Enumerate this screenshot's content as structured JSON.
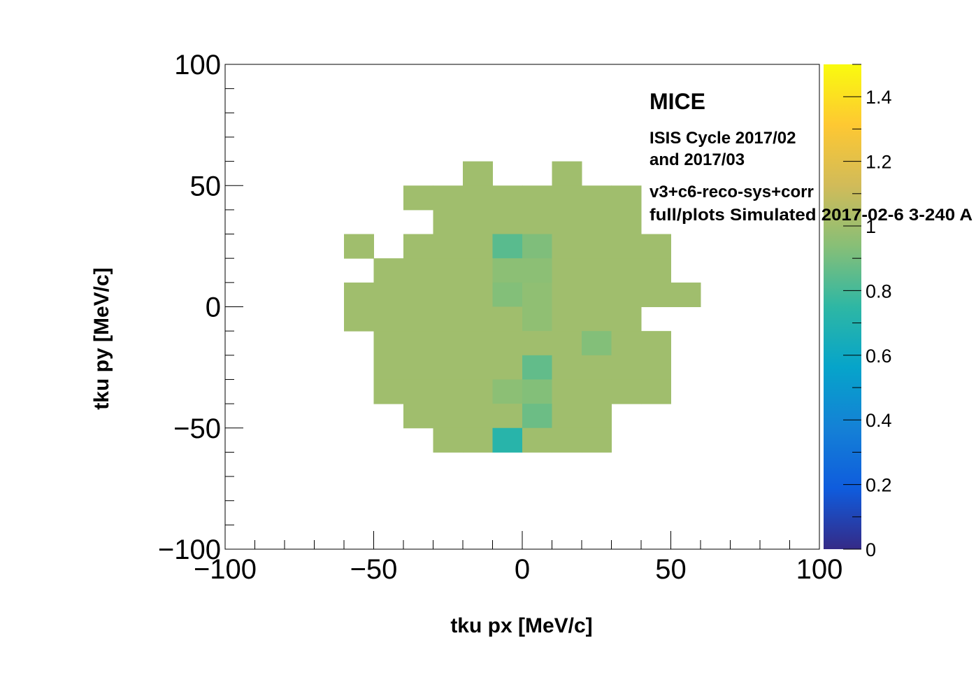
{
  "chart_data": {
    "type": "heatmap",
    "xlabel": "tku px [MeV/c]",
    "ylabel": "tku py [MeV/c]",
    "xlim": [
      -100,
      100
    ],
    "ylim": [
      -100,
      100
    ],
    "x_ticks": [
      "−100",
      "−50",
      "0",
      "50",
      "100"
    ],
    "y_ticks": [
      "−100",
      "−50",
      "0",
      "50",
      "100"
    ],
    "colorbar": {
      "range": [
        0,
        1.5
      ],
      "ticks": [
        "0",
        "0.2",
        "0.4",
        "0.6",
        "0.8",
        "1",
        "1.2",
        "1.4"
      ],
      "tick_values": [
        0,
        0.2,
        0.4,
        0.6,
        0.8,
        1.0,
        1.2,
        1.4
      ],
      "palette": [
        "#352a87",
        "#0f5cdd",
        "#1481d6",
        "#06a4ca",
        "#2eb7a4",
        "#87bf77",
        "#d1bb59",
        "#fec832",
        "#f9fb0e"
      ]
    },
    "bin_width": 10,
    "annotations": {
      "experiment": "MICE",
      "cycle_line1": "ISIS Cycle 2017/02",
      "cycle_line2": "and 2017/03",
      "version": "v3+c6-reco-sys+corr",
      "sample": "full/plots Simulated 2017-02-6 3-240 A"
    },
    "cells": [
      {
        "x": -20,
        "y": 50,
        "v": 1.0
      },
      {
        "x": 10,
        "y": 50,
        "v": 1.0
      },
      {
        "x": -40,
        "y": 40,
        "v": 1.0
      },
      {
        "x": -30,
        "y": 40,
        "v": 1.0
      },
      {
        "x": -20,
        "y": 40,
        "v": 1.0
      },
      {
        "x": -10,
        "y": 40,
        "v": 1.0
      },
      {
        "x": 0,
        "y": 40,
        "v": 1.0
      },
      {
        "x": 10,
        "y": 40,
        "v": 1.0
      },
      {
        "x": 20,
        "y": 40,
        "v": 1.0
      },
      {
        "x": 30,
        "y": 40,
        "v": 1.0
      },
      {
        "x": -30,
        "y": 30,
        "v": 1.0
      },
      {
        "x": -20,
        "y": 30,
        "v": 1.0
      },
      {
        "x": -10,
        "y": 30,
        "v": 1.0
      },
      {
        "x": 0,
        "y": 30,
        "v": 1.0
      },
      {
        "x": 10,
        "y": 30,
        "v": 1.0
      },
      {
        "x": 20,
        "y": 30,
        "v": 1.0
      },
      {
        "x": 30,
        "y": 30,
        "v": 1.0
      },
      {
        "x": -60,
        "y": 20,
        "v": 1.0
      },
      {
        "x": -40,
        "y": 20,
        "v": 1.0
      },
      {
        "x": -30,
        "y": 20,
        "v": 1.0
      },
      {
        "x": -20,
        "y": 20,
        "v": 1.0
      },
      {
        "x": -10,
        "y": 20,
        "v": 0.84
      },
      {
        "x": 0,
        "y": 20,
        "v": 0.92
      },
      {
        "x": 10,
        "y": 20,
        "v": 1.0
      },
      {
        "x": 20,
        "y": 20,
        "v": 1.0
      },
      {
        "x": 30,
        "y": 20,
        "v": 1.0
      },
      {
        "x": 40,
        "y": 20,
        "v": 1.0
      },
      {
        "x": -50,
        "y": 10,
        "v": 1.0
      },
      {
        "x": -40,
        "y": 10,
        "v": 1.0
      },
      {
        "x": -30,
        "y": 10,
        "v": 1.0
      },
      {
        "x": -20,
        "y": 10,
        "v": 1.0
      },
      {
        "x": -10,
        "y": 10,
        "v": 0.95
      },
      {
        "x": 0,
        "y": 10,
        "v": 0.95
      },
      {
        "x": 10,
        "y": 10,
        "v": 1.0
      },
      {
        "x": 20,
        "y": 10,
        "v": 1.0
      },
      {
        "x": 30,
        "y": 10,
        "v": 1.0
      },
      {
        "x": 40,
        "y": 10,
        "v": 1.0
      },
      {
        "x": -60,
        "y": 0,
        "v": 1.0
      },
      {
        "x": -50,
        "y": 0,
        "v": 1.0
      },
      {
        "x": -40,
        "y": 0,
        "v": 1.0
      },
      {
        "x": -30,
        "y": 0,
        "v": 1.0
      },
      {
        "x": -20,
        "y": 0,
        "v": 1.0
      },
      {
        "x": -10,
        "y": 0,
        "v": 0.93
      },
      {
        "x": 0,
        "y": 0,
        "v": 0.96
      },
      {
        "x": 10,
        "y": 0,
        "v": 1.0
      },
      {
        "x": 20,
        "y": 0,
        "v": 1.0
      },
      {
        "x": 30,
        "y": 0,
        "v": 1.0
      },
      {
        "x": 40,
        "y": 0,
        "v": 1.0
      },
      {
        "x": 50,
        "y": 0,
        "v": 1.0
      },
      {
        "x": -60,
        "y": -10,
        "v": 1.0
      },
      {
        "x": -50,
        "y": -10,
        "v": 1.0
      },
      {
        "x": -40,
        "y": -10,
        "v": 1.0
      },
      {
        "x": -30,
        "y": -10,
        "v": 1.0
      },
      {
        "x": -20,
        "y": -10,
        "v": 1.0
      },
      {
        "x": -10,
        "y": -10,
        "v": 1.0
      },
      {
        "x": 0,
        "y": -10,
        "v": 0.96
      },
      {
        "x": 10,
        "y": -10,
        "v": 1.0
      },
      {
        "x": 20,
        "y": -10,
        "v": 1.0
      },
      {
        "x": 30,
        "y": -10,
        "v": 1.0
      },
      {
        "x": -50,
        "y": -20,
        "v": 1.0
      },
      {
        "x": -40,
        "y": -20,
        "v": 1.0
      },
      {
        "x": -30,
        "y": -20,
        "v": 1.0
      },
      {
        "x": -20,
        "y": -20,
        "v": 1.0
      },
      {
        "x": -10,
        "y": -20,
        "v": 1.0
      },
      {
        "x": 0,
        "y": -20,
        "v": 1.0
      },
      {
        "x": 10,
        "y": -20,
        "v": 1.0
      },
      {
        "x": 20,
        "y": -20,
        "v": 0.93
      },
      {
        "x": 30,
        "y": -20,
        "v": 1.0
      },
      {
        "x": 40,
        "y": -20,
        "v": 1.0
      },
      {
        "x": -50,
        "y": -30,
        "v": 1.0
      },
      {
        "x": -40,
        "y": -30,
        "v": 1.0
      },
      {
        "x": -30,
        "y": -30,
        "v": 1.0
      },
      {
        "x": -20,
        "y": -30,
        "v": 1.0
      },
      {
        "x": -10,
        "y": -30,
        "v": 1.0
      },
      {
        "x": 0,
        "y": -30,
        "v": 0.86
      },
      {
        "x": 10,
        "y": -30,
        "v": 1.0
      },
      {
        "x": 20,
        "y": -30,
        "v": 1.0
      },
      {
        "x": 30,
        "y": -30,
        "v": 1.0
      },
      {
        "x": 40,
        "y": -30,
        "v": 1.0
      },
      {
        "x": -50,
        "y": -40,
        "v": 1.0
      },
      {
        "x": -40,
        "y": -40,
        "v": 1.0
      },
      {
        "x": -30,
        "y": -40,
        "v": 1.0
      },
      {
        "x": -20,
        "y": -40,
        "v": 1.0
      },
      {
        "x": -10,
        "y": -40,
        "v": 0.95
      },
      {
        "x": 0,
        "y": -40,
        "v": 0.93
      },
      {
        "x": 10,
        "y": -40,
        "v": 1.0
      },
      {
        "x": 20,
        "y": -40,
        "v": 1.0
      },
      {
        "x": 30,
        "y": -40,
        "v": 1.0
      },
      {
        "x": 40,
        "y": -40,
        "v": 1.0
      },
      {
        "x": -40,
        "y": -50,
        "v": 1.0
      },
      {
        "x": -30,
        "y": -50,
        "v": 1.0
      },
      {
        "x": -20,
        "y": -50,
        "v": 1.0
      },
      {
        "x": -10,
        "y": -50,
        "v": 1.0
      },
      {
        "x": 0,
        "y": -50,
        "v": 0.88
      },
      {
        "x": 10,
        "y": -50,
        "v": 1.0
      },
      {
        "x": 20,
        "y": -50,
        "v": 1.0
      },
      {
        "x": -30,
        "y": -60,
        "v": 1.0
      },
      {
        "x": -20,
        "y": -60,
        "v": 1.0
      },
      {
        "x": -10,
        "y": -60,
        "v": 0.72
      },
      {
        "x": 0,
        "y": -60,
        "v": 1.0
      },
      {
        "x": 10,
        "y": -60,
        "v": 1.0
      },
      {
        "x": 20,
        "y": -60,
        "v": 1.0
      }
    ]
  }
}
